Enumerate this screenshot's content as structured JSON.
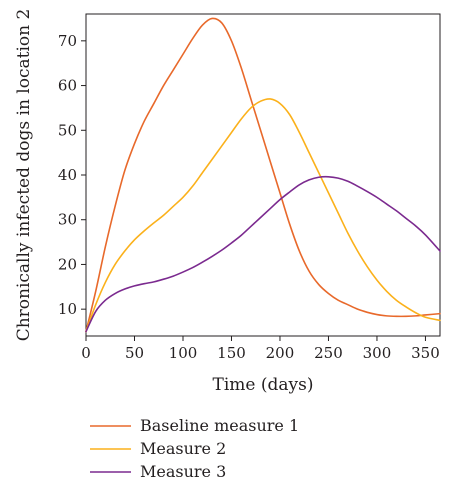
{
  "chart_data": {
    "type": "line",
    "xlabel": "Time (days)",
    "ylabel": "Chronically infected dogs in location 2",
    "xlim": [
      0,
      365
    ],
    "ylim": [
      4,
      76
    ],
    "xticks": [
      0,
      50,
      100,
      150,
      200,
      250,
      300,
      350
    ],
    "yticks": [
      10,
      20,
      30,
      40,
      50,
      60,
      70
    ],
    "grid": false,
    "legend_position": "bottom",
    "series": [
      {
        "name": "Baseline measure 1",
        "color": "#e8692b",
        "x": [
          0,
          10,
          20,
          30,
          40,
          50,
          60,
          70,
          80,
          90,
          100,
          110,
          120,
          130,
          140,
          150,
          160,
          170,
          180,
          190,
          200,
          210,
          220,
          230,
          240,
          250,
          260,
          270,
          280,
          290,
          300,
          310,
          320,
          330,
          340,
          350,
          365
        ],
        "values": [
          5,
          14,
          24,
          33,
          41,
          47,
          52,
          56,
          60,
          63.5,
          67,
          70.5,
          73.5,
          75,
          74,
          70,
          64,
          57,
          50,
          43,
          36,
          29,
          23,
          18.5,
          15.5,
          13.5,
          12,
          11,
          10,
          9.3,
          8.8,
          8.5,
          8.4,
          8.4,
          8.5,
          8.7,
          9
        ]
      },
      {
        "name": "Measure 2",
        "color": "#fbb11b",
        "x": [
          0,
          10,
          20,
          30,
          40,
          50,
          60,
          70,
          80,
          90,
          100,
          110,
          120,
          130,
          140,
          150,
          160,
          170,
          180,
          190,
          200,
          210,
          220,
          230,
          240,
          250,
          260,
          270,
          280,
          290,
          300,
          310,
          320,
          330,
          340,
          350,
          365
        ],
        "values": [
          5,
          11,
          16,
          20,
          23,
          25.5,
          27.5,
          29.3,
          31,
          33,
          35,
          37.5,
          40.5,
          43.5,
          46.5,
          49.5,
          52.5,
          55,
          56.5,
          57,
          56,
          53.5,
          49.5,
          45,
          40.5,
          36,
          31.5,
          27,
          23,
          19.5,
          16.5,
          14,
          12,
          10.5,
          9.2,
          8.2,
          7.5
        ]
      },
      {
        "name": "Measure 3",
        "color": "#7b2a8f",
        "x": [
          0,
          10,
          20,
          30,
          40,
          50,
          60,
          70,
          80,
          90,
          100,
          110,
          120,
          130,
          140,
          150,
          160,
          170,
          180,
          190,
          200,
          210,
          220,
          230,
          240,
          250,
          260,
          270,
          280,
          290,
          300,
          310,
          320,
          330,
          340,
          350,
          365
        ],
        "values": [
          5,
          9.5,
          12,
          13.5,
          14.5,
          15.2,
          15.7,
          16.1,
          16.7,
          17.4,
          18.3,
          19.3,
          20.5,
          21.8,
          23.2,
          24.8,
          26.5,
          28.5,
          30.5,
          32.5,
          34.5,
          36.2,
          37.8,
          38.9,
          39.5,
          39.6,
          39.3,
          38.6,
          37.5,
          36.3,
          35,
          33.5,
          32,
          30.3,
          28.6,
          26.6,
          23
        ]
      }
    ]
  }
}
